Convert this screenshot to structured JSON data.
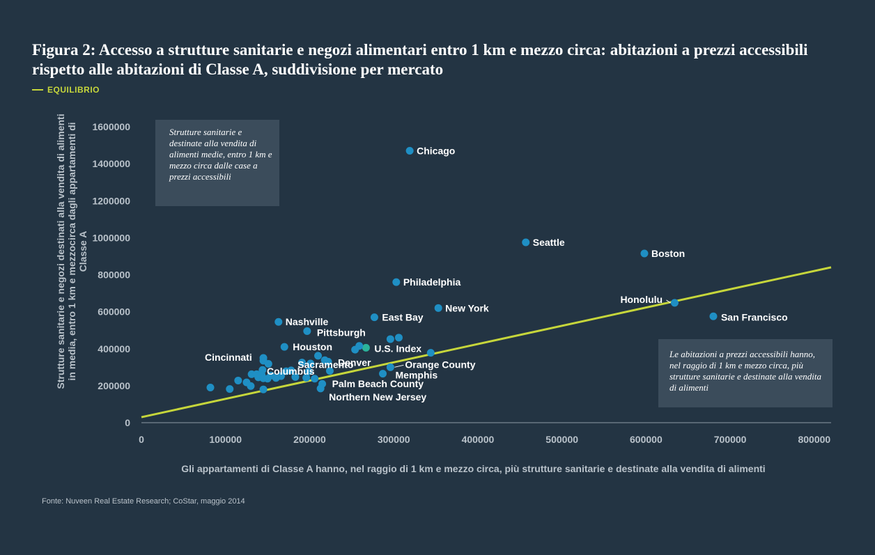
{
  "title": "Figura 2: Accesso a strutture sanitarie e negozi alimentari entro 1 km e mezzo circa: abitazioni a prezzi accessibili rispetto alle abitazioni di Classe A, suddivisione per mercato",
  "legend": {
    "label": "EQUILIBRIO",
    "color": "#c6d63b"
  },
  "source": "Fonte: Nuveen Real Estate Research; CoStar, maggio 2014",
  "notes": {
    "top_left": "Strutture sanitarie e destinate alla vendita di alimenti medie, entro 1 km e mezzo circa dalle case a prezzi accessibili",
    "bottom_right": "Le abitazioni a prezzi accessibili hanno, nel raggio di 1 km e mezzo circa, più strutture sanitarie e destinate alla vendita di alimenti"
  },
  "colors": {
    "background": "#233443",
    "point": "#1f8fc4",
    "highlight": "#2bb39b",
    "line": "#c6d63b",
    "axis": "#8e9aa4"
  },
  "chart_data": {
    "type": "scatter",
    "title": "Figura 2",
    "xlabel": "Gli appartamenti di Classe A hanno, nel raggio di 1 km e mezzo circa, più strutture sanitarie e destinate alla vendita di alimenti",
    "ylabel": "Strutture sanitarie e negozi destinati alla vendita di alimenti in media, entro 1 km e mezzocirca dagli appartamenti di Classe A",
    "xlim": [
      0,
      820000
    ],
    "ylim": [
      0,
      1600000
    ],
    "xticks": [
      0,
      100000,
      200000,
      300000,
      400000,
      500000,
      600000,
      700000,
      800000
    ],
    "xtick_labels": [
      "0",
      "100000",
      "200000",
      "300000",
      "400000",
      "500000",
      "600000",
      "700000",
      "800000"
    ],
    "yticks": [
      0,
      200000,
      400000,
      600000,
      800000,
      1000000,
      1200000,
      1400000,
      1600000
    ],
    "ytick_labels": [
      "0",
      "200000",
      "400000",
      "600000",
      "800000",
      "1000000",
      "1200000",
      "1400000",
      "1600000"
    ],
    "equilibrium": {
      "name": "EQUILIBRIO",
      "x": [
        0,
        820000
      ],
      "y": [
        30000,
        840000
      ]
    },
    "points": [
      {
        "name": "Chicago",
        "x": 319000,
        "y": 1470000,
        "label": "Chicago",
        "lx": 10,
        "ly": 5
      },
      {
        "name": "Seattle",
        "x": 457000,
        "y": 975000,
        "label": "Seattle",
        "lx": 10,
        "ly": 5
      },
      {
        "name": "Boston",
        "x": 598000,
        "y": 915000,
        "label": "Boston",
        "lx": 10,
        "ly": 5
      },
      {
        "name": "Philadelphia",
        "x": 303000,
        "y": 760000,
        "label": "Philadelphia",
        "lx": 10,
        "ly": 5
      },
      {
        "name": "Honolulu",
        "x": 634000,
        "y": 648000,
        "label": "Honolulu",
        "lx": -78,
        "ly": 0,
        "leader": true
      },
      {
        "name": "New York",
        "x": 353000,
        "y": 620000,
        "label": "New York",
        "lx": 10,
        "ly": 5
      },
      {
        "name": "San Francisco",
        "x": 680000,
        "y": 575000,
        "label": "San Francisco",
        "lx": 11,
        "ly": 6
      },
      {
        "name": "East Bay",
        "x": 277000,
        "y": 570000,
        "label": "East Bay",
        "lx": 11,
        "ly": 5
      },
      {
        "name": "Nashville",
        "x": 163000,
        "y": 545000,
        "label": "Nashville",
        "lx": 10,
        "ly": 5
      },
      {
        "name": "Pittsburgh",
        "x": 197000,
        "y": 495000,
        "label": "Pittsburgh",
        "lx": 14,
        "ly": 7
      },
      {
        "name": "Houston",
        "x": 170000,
        "y": 410000,
        "label": "Houston",
        "lx": 12,
        "ly": 5
      },
      {
        "name": "U.S. Index",
        "x": 267000,
        "y": 405000,
        "label": "U.S. Index",
        "lx": 12,
        "ly": 6,
        "highlight": true
      },
      {
        "name": "Orange County",
        "x": 296000,
        "y": 300000,
        "label": "Orange County",
        "lx": 21,
        "ly": 1,
        "leader": true
      },
      {
        "name": "Memphis",
        "x": 287000,
        "y": 265000,
        "label": "Memphis",
        "lx": 18,
        "ly": 7
      },
      {
        "name": "Denver",
        "x": 222000,
        "y": 330000,
        "label": "Denver",
        "lx": 14,
        "ly": 6
      },
      {
        "name": "Cincinnati",
        "x": 145000,
        "y": 350000,
        "label": "Cincinnati",
        "lx": -84,
        "ly": 4
      },
      {
        "name": "Sacramento",
        "x": 199000,
        "y": 277000,
        "label": "Sacramento",
        "lx": -16,
        "ly": -5
      },
      {
        "name": "Columbus",
        "x": 145000,
        "y": 180000,
        "label": "Columbus",
        "lx": 5,
        "ly": -21
      },
      {
        "name": "Palm Beach County",
        "x": 215000,
        "y": 210000,
        "label": "Palm Beach County",
        "lx": 14,
        "ly": 5
      },
      {
        "name": "Northern New Jersey",
        "x": 213000,
        "y": 185000,
        "label": "Northern New Jersey",
        "lx": 12,
        "ly": 17
      },
      {
        "name": "",
        "x": 306000,
        "y": 460000
      },
      {
        "name": "",
        "x": 296000,
        "y": 452000
      },
      {
        "name": "",
        "x": 259000,
        "y": 415000
      },
      {
        "name": "",
        "x": 254000,
        "y": 395000
      },
      {
        "name": "",
        "x": 344000,
        "y": 378000
      },
      {
        "name": "",
        "x": 210000,
        "y": 362000
      },
      {
        "name": "",
        "x": 145000,
        "y": 335000
      },
      {
        "name": "",
        "x": 151000,
        "y": 318000
      },
      {
        "name": "",
        "x": 191000,
        "y": 325000
      },
      {
        "name": "",
        "x": 218000,
        "y": 338000
      },
      {
        "name": "",
        "x": 201000,
        "y": 320000
      },
      {
        "name": "",
        "x": 144000,
        "y": 285000
      },
      {
        "name": "",
        "x": 178000,
        "y": 283000
      },
      {
        "name": "",
        "x": 172000,
        "y": 278000
      },
      {
        "name": "",
        "x": 131000,
        "y": 262000
      },
      {
        "name": "",
        "x": 137000,
        "y": 262000
      },
      {
        "name": "",
        "x": 143000,
        "y": 258000
      },
      {
        "name": "",
        "x": 154000,
        "y": 255000
      },
      {
        "name": "",
        "x": 166000,
        "y": 252000
      },
      {
        "name": "",
        "x": 183000,
        "y": 247000
      },
      {
        "name": "",
        "x": 139000,
        "y": 245000
      },
      {
        "name": "",
        "x": 145000,
        "y": 240000
      },
      {
        "name": "",
        "x": 150000,
        "y": 238000
      },
      {
        "name": "",
        "x": 160000,
        "y": 242000
      },
      {
        "name": "",
        "x": 196000,
        "y": 243000
      },
      {
        "name": "",
        "x": 206000,
        "y": 238000
      },
      {
        "name": "",
        "x": 115000,
        "y": 228000
      },
      {
        "name": "",
        "x": 125000,
        "y": 218000
      },
      {
        "name": "",
        "x": 130000,
        "y": 198000
      },
      {
        "name": "",
        "x": 82000,
        "y": 190000
      },
      {
        "name": "",
        "x": 105000,
        "y": 182000
      },
      {
        "name": "",
        "x": 224000,
        "y": 280000
      }
    ]
  }
}
